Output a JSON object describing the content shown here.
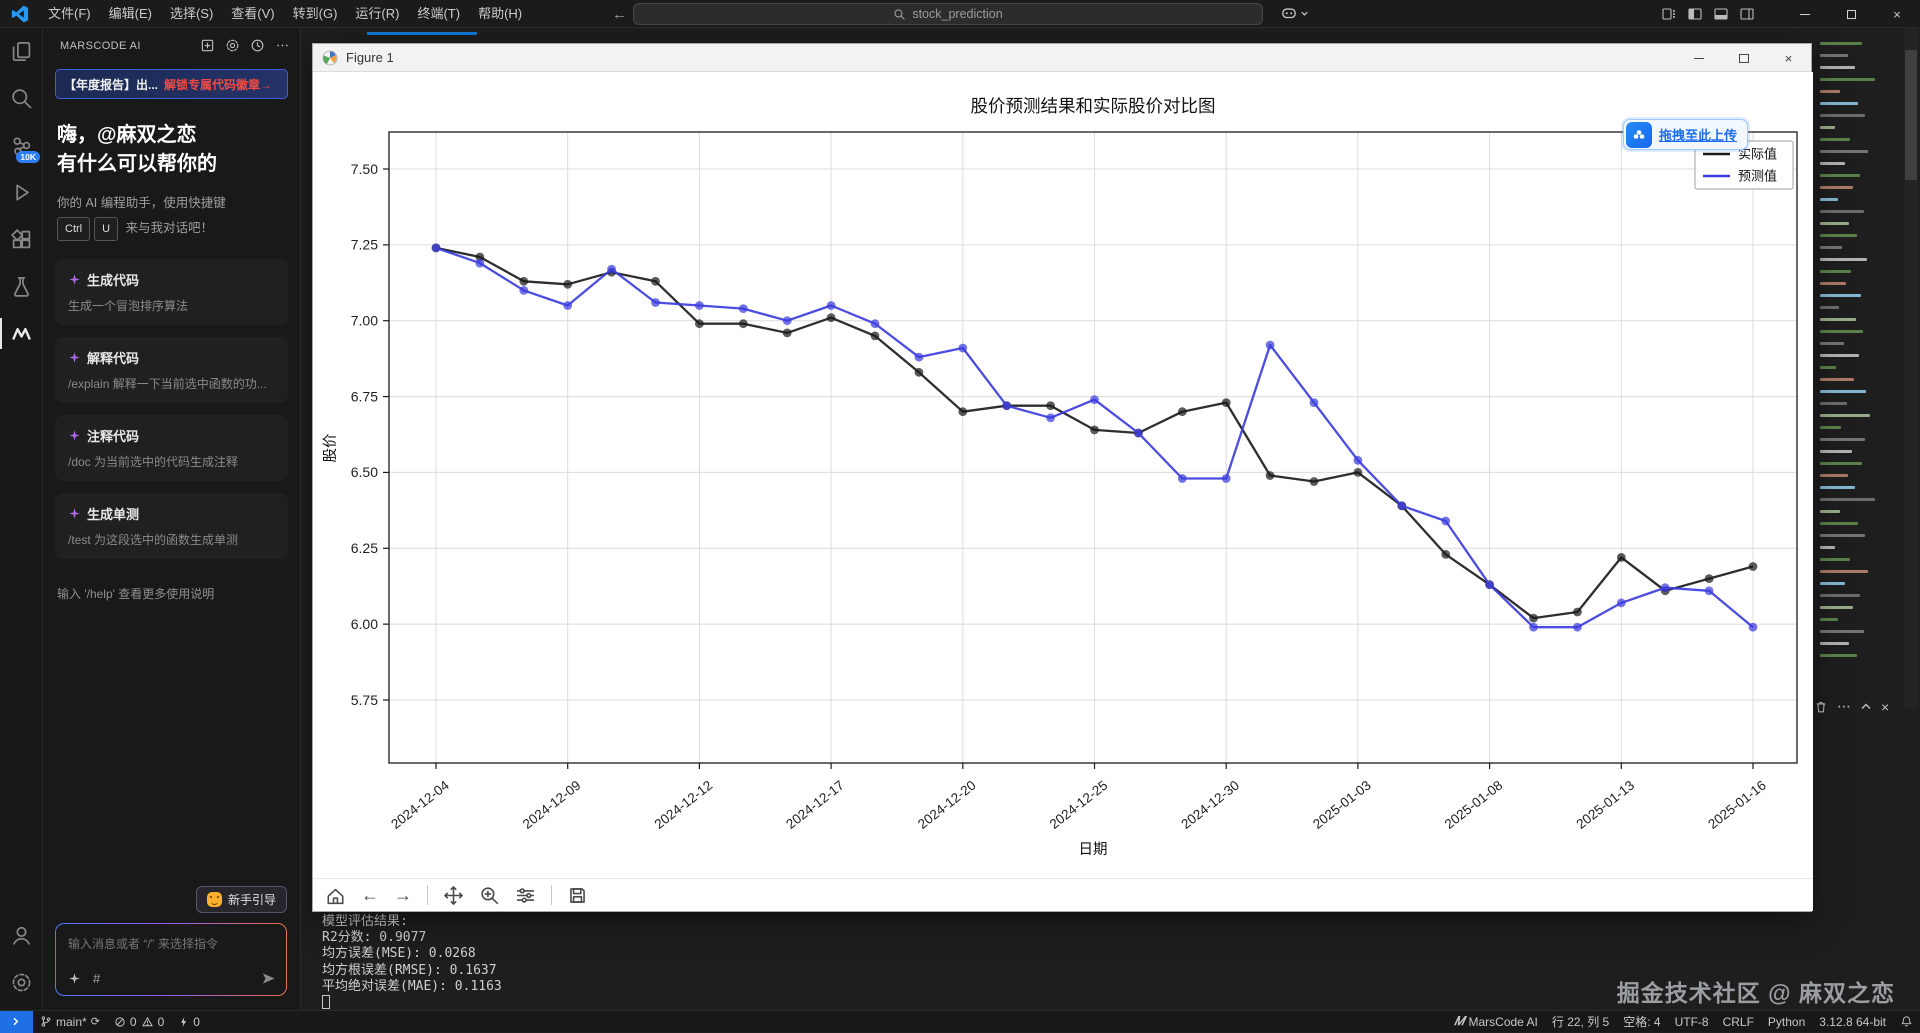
{
  "titlebar": {
    "menus": [
      "文件(F)",
      "编辑(E)",
      "选择(S)",
      "查看(V)",
      "转到(G)",
      "运行(R)",
      "终端(T)",
      "帮助(H)"
    ],
    "search_value": "stock_prediction",
    "layout_icons": [
      "layout-customize",
      "layout-sidebar-left",
      "layout-panel",
      "layout-sidebar-right"
    ]
  },
  "activity_bar": {
    "items": [
      "explorer",
      "search",
      "ai-chat",
      "run-debug",
      "extensions",
      "testing",
      "marscode"
    ],
    "active_item": "marscode",
    "badge": "10K",
    "bottom_items": [
      "account",
      "settings"
    ]
  },
  "sidebar": {
    "title": "MARSCODE AI",
    "header_icons": [
      "new-chat",
      "settings",
      "history",
      "more"
    ],
    "banner": {
      "text_left": "【年度报告】出...",
      "text_right": "解锁专属代码徽章→"
    },
    "greeting_line1": "嗨，@麻双之恋",
    "greeting_line2": "有什么可以帮你的",
    "assist_prefix": "你的 AI 编程助手，使用快捷键",
    "keys": [
      "Ctrl",
      "U"
    ],
    "assist_suffix": "来与我对话吧！",
    "cards": [
      {
        "title": "生成代码",
        "desc": "生成一个冒泡排序算法"
      },
      {
        "title": "解释代码",
        "desc": "/explain 解释一下当前选中函数的功..."
      },
      {
        "title": "注释代码",
        "desc": "/doc 为当前选中的代码生成注释"
      },
      {
        "title": "生成单测",
        "desc": "/test 为这段选中的函数生成单测"
      }
    ],
    "help_hint": "输入 '/help' 查看更多使用说明",
    "guide_button": "新手引导",
    "input_placeholder": "输入消息或者 “/” 来选择指令"
  },
  "figure": {
    "title": "Figure 1",
    "upload_label": "拖拽至此上传",
    "toolbar": [
      "home",
      "back",
      "forward",
      "sep",
      "pan",
      "zoom",
      "configure",
      "sep",
      "save"
    ]
  },
  "chart_data": {
    "type": "line",
    "title": "股价预测结果和实际股价对比图",
    "xlabel": "日期",
    "ylabel": "股价",
    "grid": true,
    "legend_position": "upper right",
    "ylim": [
      5.63,
      7.62
    ],
    "yticks": [
      5.75,
      6.0,
      6.25,
      6.5,
      6.75,
      7.0,
      7.25,
      7.5
    ],
    "x": [
      "2024-12-04",
      "2024-12-05",
      "2024-12-06",
      "2024-12-09",
      "2024-12-10",
      "2024-12-11",
      "2024-12-12",
      "2024-12-13",
      "2024-12-16",
      "2024-12-17",
      "2024-12-18",
      "2024-12-19",
      "2024-12-20",
      "2024-12-23",
      "2024-12-24",
      "2024-12-25",
      "2024-12-26",
      "2024-12-27",
      "2024-12-30",
      "2024-12-31",
      "2025-01-02",
      "2025-01-03",
      "2025-01-06",
      "2025-01-07",
      "2025-01-08",
      "2025-01-09",
      "2025-01-10",
      "2025-01-13",
      "2025-01-14",
      "2025-01-15",
      "2025-01-16"
    ],
    "x_tick_indices": [
      0,
      3,
      6,
      9,
      12,
      15,
      18,
      21,
      24,
      27,
      30
    ],
    "x_tick_labels": [
      "2024-12-04",
      "2024-12-09",
      "2024-12-12",
      "2024-12-17",
      "2024-12-20",
      "2024-12-25",
      "2024-12-30",
      "2025-01-03",
      "2025-01-08",
      "2025-01-13",
      "2025-01-16"
    ],
    "series": [
      {
        "name": "实际值",
        "color": "#1c1c1c",
        "values": [
          7.24,
          7.21,
          7.13,
          7.12,
          7.16,
          7.13,
          6.99,
          6.99,
          6.96,
          7.01,
          6.95,
          6.83,
          6.7,
          6.72,
          6.72,
          6.64,
          6.63,
          6.7,
          6.73,
          6.49,
          6.47,
          6.5,
          6.39,
          6.23,
          6.13,
          6.02,
          6.04,
          6.22,
          6.11,
          6.15,
          6.19
        ]
      },
      {
        "name": "预测值",
        "color": "#3d3ddf",
        "values": [
          7.24,
          7.19,
          7.1,
          7.05,
          7.17,
          7.06,
          7.05,
          7.04,
          7.0,
          7.05,
          6.99,
          6.88,
          6.91,
          6.72,
          6.68,
          6.74,
          6.63,
          6.48,
          6.48,
          6.92,
          6.73,
          6.54,
          6.39,
          6.34,
          6.13,
          5.99,
          5.99,
          6.07,
          6.12,
          6.11,
          5.99
        ]
      }
    ]
  },
  "terminal": {
    "lines": [
      "模型评估结果:",
      "R2分数: 0.9077",
      "均方误差(MSE): 0.0268",
      "均方根误差(RMSE): 0.1637",
      "平均绝对误差(MAE): 0.1163"
    ]
  },
  "panel_watermark": "掘金技术社区 @ 麻双之恋",
  "status_bar": {
    "branch": "main*",
    "errors": "0",
    "warnings": "0",
    "ports": "0",
    "right_items": [
      "MarsCode AI",
      "行 22, 列 5",
      "空格: 4",
      "UTF-8",
      "CRLF",
      "Python",
      "3.12.8 64-bit"
    ]
  },
  "colors": {
    "accent": "#0f7ad8",
    "upload_blue": "#1f6ff2",
    "banner_red": "#ef4b44",
    "badge_blue": "#2f7df6",
    "remote_blue": "#1f6fe5",
    "series_actual": "#1c1c1c",
    "series_predicted": "#3d3ddf"
  }
}
